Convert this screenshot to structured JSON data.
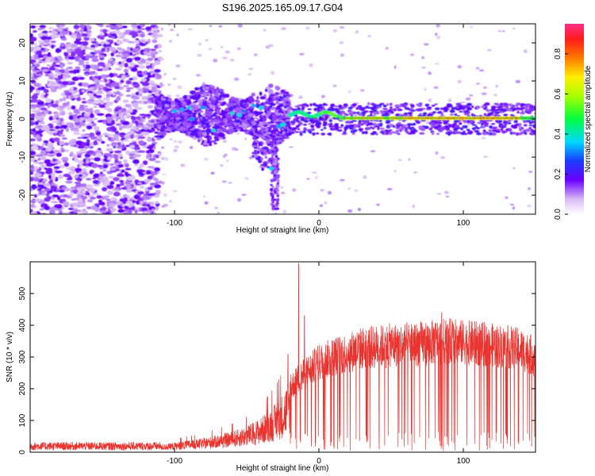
{
  "title": "S196.2025.165.09.17.G04",
  "chart_data": [
    {
      "type": "heatmap",
      "xlabel": "Height of straight line (km)",
      "ylabel": "Frequency (Hz)",
      "xlim": [
        -200,
        150
      ],
      "ylim": [
        -25,
        25
      ],
      "xticks": [
        -100,
        0,
        100
      ],
      "yticks": [
        -20,
        -10,
        0,
        10,
        20
      ],
      "colorbar": {
        "label": "Normalized spectral amplitude",
        "range": [
          0,
          0.95
        ],
        "ticks": [
          0.0,
          0.2,
          0.4,
          0.6,
          0.8
        ],
        "tick_labels": [
          "0.0",
          "0.2",
          "0.4",
          "0.6",
          "0.8"
        ]
      },
      "description_points": {
        "carrier_frequency_hz": 0,
        "strong_signal_start_km": -20,
        "noise_region_end_km": -110
      }
    },
    {
      "type": "line",
      "xlabel": "Height of straight line (km)",
      "ylabel": "SNR (10 * v/v)",
      "xlim": [
        -200,
        150
      ],
      "ylim": [
        0,
        600
      ],
      "xticks": [
        -100,
        0,
        100
      ],
      "yticks": [
        0,
        100,
        200,
        300,
        400,
        500
      ],
      "color": "#e8332f",
      "envelope": {
        "x": [
          -200,
          -150,
          -110,
          -100,
          -80,
          -60,
          -50,
          -40,
          -30,
          -25,
          -20,
          -15,
          -10,
          -5,
          0,
          10,
          20,
          30,
          40,
          50,
          60,
          70,
          80,
          90,
          100,
          110,
          120,
          130,
          140,
          150
        ],
        "y": [
          18,
          20,
          22,
          28,
          40,
          60,
          75,
          100,
          140,
          170,
          220,
          250,
          270,
          290,
          310,
          330,
          345,
          360,
          365,
          370,
          372,
          375,
          380,
          385,
          380,
          375,
          370,
          365,
          355,
          330
        ]
      },
      "spikes": [
        {
          "x": -14,
          "y": 595
        },
        {
          "x": -10,
          "y": 430
        },
        {
          "x": 85,
          "y": 440
        }
      ]
    }
  ]
}
